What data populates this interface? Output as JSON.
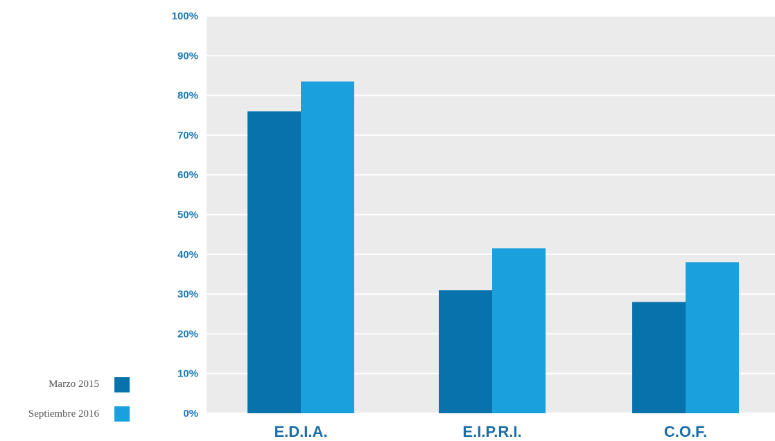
{
  "chart_data": {
    "type": "bar",
    "title": "",
    "xlabel": "",
    "ylabel": "",
    "categories": [
      "E.D.I.A.",
      "E.I.P.R.I.",
      "C.O.F."
    ],
    "series": [
      {
        "name": "Marzo 2015",
        "color": "#0872ad",
        "values": [
          76,
          31,
          28
        ]
      },
      {
        "name": "Septiembre 2016",
        "color": "#1aa0dc",
        "values": [
          83.5,
          41.5,
          38
        ]
      }
    ],
    "ylim": [
      0,
      100
    ],
    "yticks": [
      "0%",
      "10%",
      "20%",
      "30%",
      "40%",
      "50%",
      "60%",
      "70%",
      "80%",
      "90%",
      "100%"
    ],
    "grid": true,
    "plot_background": "#ebebeb",
    "legend_position": "bottom-left"
  }
}
